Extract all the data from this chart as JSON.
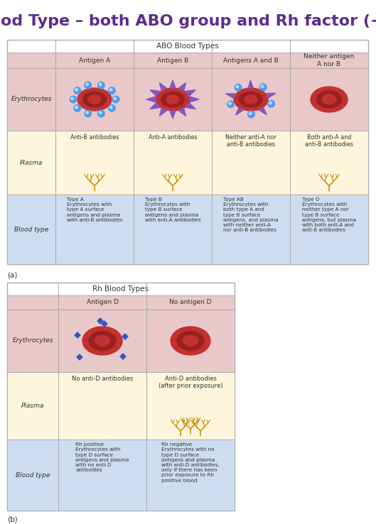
{
  "title": "Blood Type – both ABO group and Rh factor (+/-)",
  "title_color": "#5b2d8e",
  "title_fontsize": 16,
  "bg_color": "#ffffff",
  "abo_header": "ABO Blood Types",
  "abo_col_headers": [
    "Antigen A",
    "Antigen B",
    "Antigens A and B",
    "Neither antigen\nA nor B"
  ],
  "abo_row_headers": [
    "Erythrocytes",
    "Plasma",
    "Blood type"
  ],
  "abo_plasma_labels": [
    "Anti-B antibodies",
    "Anti-A antibodies",
    "Neither anti-A nor\nanti-B antibodies",
    "Both anti-A and\nanti-B antibodies"
  ],
  "abo_bloodtype_labels": [
    "Type A\nErythrocytes with\ntype A surface\nantigens and plasma\nwith anti-B antibodies",
    "Type B\nErythrocytes with\ntype B surface\nantigens and plasma\nwith anti-A antibodies",
    "Type AB\nErythrocytes with\nboth type A and\ntype B surface\nantigens, and plasma\nwith neither anti-A\nnor anti-B antibodies",
    "Type O\nErythrocytes with\nneither type A nor\ntype B surface\nantigens, but plasma\nwith both anti-A and\nanti-B antibodies"
  ],
  "rh_header": "Rh Blood Types",
  "rh_col_headers": [
    "Antigen D",
    "No antigen D"
  ],
  "rh_row_headers": [
    "Erythrocytes",
    "Plasma",
    "Blood type"
  ],
  "rh_plasma_labels": [
    "No anti-D antibodies",
    "Anti-D antibodies\n(after prior exposure)"
  ],
  "rh_bloodtype_labels": [
    "Rh positive\nErythrocytes with\ntype D surface\nantigens and plasma\nwith no anti-D\nantibodies",
    "Rh negative\nErythrocytes with no\ntype D surface\nantigens and plasma\nwith anti-D antibodies,\nonly if there has been\nprior exposure to Rh\npositive blood"
  ],
  "row_bg_erythrocytes": "#e8c8c8",
  "row_bg_plasma": "#fdf5dc",
  "row_bg_bloodtype": "#ccddf0",
  "col_header_bg": "#e8c8c8",
  "table_border": "#aaaaaa",
  "text_color": "#333333",
  "antibody_color": "#cc8800",
  "antigen_a_color": "#5599ee",
  "antigen_b_color": "#8855bb",
  "antigen_d_color": "#3355cc",
  "rbc_outer": "#c43030",
  "rbc_mid": "#992020",
  "rbc_inner": "#c43030"
}
